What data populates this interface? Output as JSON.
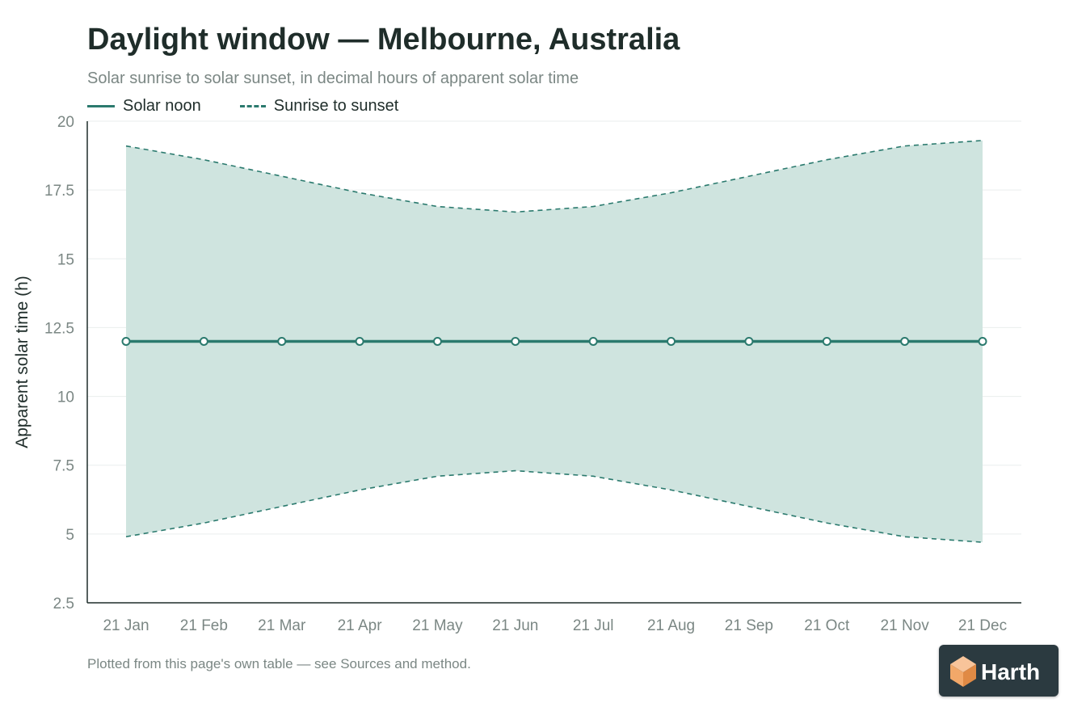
{
  "title": "Daylight window — Melbourne, Australia",
  "subtitle": "Solar sunrise to solar sunset, in decimal hours of apparent solar time",
  "legend": {
    "noon_label": "Solar noon",
    "window_label": "Sunrise to sunset"
  },
  "footnote": "Plotted from this page's own table — see Sources and method.",
  "logo": {
    "text": "Harth",
    "icon": "cube-logo-icon"
  },
  "colors": {
    "line": "#2b7a6e",
    "band_fill": "#cfe4df",
    "grid": "#e9eeed",
    "axis": "#1f2d2a",
    "logo_bg": "#2b3a40",
    "logo_icon": "#f2a869"
  },
  "chart_data": {
    "type": "area",
    "ylabel": "Apparent solar time (h)",
    "xlabel": "",
    "ylim": [
      2.5,
      20
    ],
    "yticks": [
      2.5,
      5,
      7.5,
      10,
      12.5,
      15,
      17.5,
      20
    ],
    "ytick_labels": [
      "2.5",
      "5",
      "7.5",
      "10",
      "12.5",
      "15",
      "17.5",
      "20"
    ],
    "grid": true,
    "legend_position": "top-left",
    "categories": [
      "21 Jan",
      "21 Feb",
      "21 Mar",
      "21 Apr",
      "21 May",
      "21 Jun",
      "21 Jul",
      "21 Aug",
      "21 Sep",
      "21 Oct",
      "21 Nov",
      "21 Dec"
    ],
    "series": [
      {
        "name": "Solar noon",
        "style": "solid",
        "markers": true,
        "values": [
          12,
          12,
          12,
          12,
          12,
          12,
          12,
          12,
          12,
          12,
          12,
          12
        ]
      },
      {
        "name": "Sunrise to sunset",
        "style": "dashed-band",
        "sunrise": [
          4.9,
          5.4,
          6.0,
          6.6,
          7.1,
          7.3,
          7.1,
          6.6,
          6.0,
          5.4,
          4.9,
          4.7
        ],
        "sunset": [
          19.1,
          18.6,
          18.0,
          17.4,
          16.9,
          16.7,
          16.9,
          17.4,
          18.0,
          18.6,
          19.1,
          19.3
        ]
      }
    ]
  }
}
